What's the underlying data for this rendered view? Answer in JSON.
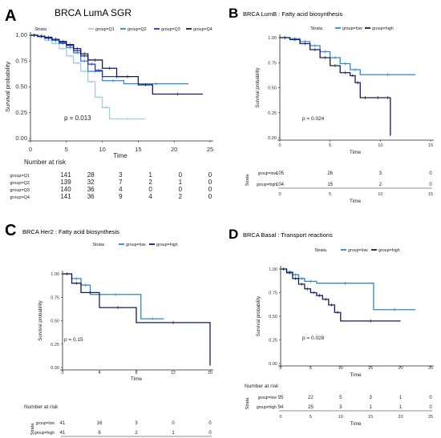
{
  "chart_data": [
    {
      "type": "line",
      "panel_letter": "A",
      "title": "BRCA LumA SGR",
      "legend_title": "Strata",
      "legend_placement": "top",
      "xlabel": "Time",
      "ylabel": "Survival probability",
      "xlim": [
        0,
        25
      ],
      "ylim": [
        0,
        1
      ],
      "xticks": [
        0,
        5,
        10,
        15,
        20,
        25
      ],
      "yticks": [
        "0.00",
        "0.25",
        "0.50",
        "0.75",
        "1.00"
      ],
      "pvalue": "p = 0.013",
      "series": [
        {
          "name": "group=Q1",
          "color": "#9ecfe3",
          "x": [
            0,
            1,
            2,
            3,
            4,
            5,
            6,
            7,
            8,
            9,
            10,
            11,
            16
          ],
          "y": [
            1.0,
            0.98,
            0.95,
            0.92,
            0.87,
            0.8,
            0.73,
            0.65,
            0.55,
            0.4,
            0.3,
            0.19,
            0.19
          ]
        },
        {
          "name": "group=Q2",
          "color": "#2f86d4",
          "x": [
            0,
            1,
            2,
            3,
            4,
            5,
            6,
            7,
            8,
            10,
            13,
            22
          ],
          "y": [
            1.0,
            0.99,
            0.97,
            0.95,
            0.92,
            0.88,
            0.83,
            0.75,
            0.65,
            0.56,
            0.53,
            0.53
          ]
        },
        {
          "name": "group=Q3",
          "color": "#2b2fc7",
          "x": [
            0,
            1,
            2,
            3,
            4,
            5,
            6,
            7,
            8,
            9,
            10,
            14
          ],
          "y": [
            1.0,
            0.99,
            0.97,
            0.96,
            0.93,
            0.9,
            0.85,
            0.8,
            0.72,
            0.66,
            0.6,
            0.6
          ]
        },
        {
          "name": "group=Q4",
          "color": "#141c5e",
          "x": [
            0,
            1,
            2,
            3,
            4,
            5,
            6,
            7,
            8,
            10,
            12,
            15,
            17,
            24
          ],
          "y": [
            1.0,
            0.99,
            0.98,
            0.96,
            0.94,
            0.91,
            0.87,
            0.82,
            0.76,
            0.68,
            0.6,
            0.52,
            0.43,
            0.43
          ]
        }
      ],
      "risk_table": {
        "title": "Number at risk",
        "strata_label": "",
        "times": [
          0,
          5,
          10,
          15,
          20,
          25
        ],
        "rows": [
          {
            "label": "group=Q1",
            "color": "#9ecfe3",
            "values": [
              "141",
              "28",
              "3",
              "1",
              "0",
              "0"
            ]
          },
          {
            "label": "group=Q2",
            "color": "#2f86d4",
            "values": [
              "139",
              "32",
              "7",
              "2",
              "1",
              "0"
            ]
          },
          {
            "label": "group=Q3",
            "color": "#2b2fc7",
            "values": [
              "140",
              "36",
              "4",
              "0",
              "0",
              "0"
            ]
          },
          {
            "label": "group=Q4",
            "color": "#141c5e",
            "values": [
              "141",
              "36",
              "9",
              "4",
              "2",
              "0"
            ]
          }
        ],
        "xlabel": ""
      }
    },
    {
      "type": "line",
      "panel_letter": "B",
      "title": "BRCA LumB : Fatty acid biosynthesis",
      "legend_title": "Strata",
      "legend_placement": "top",
      "xlabel": "Time",
      "ylabel": "Survival probability",
      "xlim": [
        0,
        15
      ],
      "ylim": [
        0,
        1
      ],
      "xticks": [
        0,
        5,
        10,
        15
      ],
      "yticks": [
        "0.00",
        "0.25",
        "0.50",
        "0.75",
        "1.00"
      ],
      "pvalue": "p = 0.024",
      "series": [
        {
          "name": "group=low",
          "color": "#2f86d4",
          "x": [
            0,
            1,
            2,
            3,
            4,
            5,
            6,
            7,
            8,
            13.5
          ],
          "y": [
            1.0,
            0.99,
            0.96,
            0.92,
            0.86,
            0.8,
            0.74,
            0.68,
            0.63,
            0.63
          ]
        },
        {
          "name": "group=high",
          "color": "#141c5e",
          "x": [
            0,
            1,
            2,
            3,
            4,
            5,
            6,
            7,
            7.5,
            8,
            9,
            10.5,
            11
          ],
          "y": [
            1.0,
            0.98,
            0.94,
            0.88,
            0.8,
            0.72,
            0.65,
            0.62,
            0.55,
            0.4,
            0.4,
            0.4,
            0.02
          ]
        }
      ],
      "risk_table": {
        "title": "",
        "strata_label": "Strata",
        "times": [
          0,
          5,
          10,
          15
        ],
        "rows": [
          {
            "label": "group=low",
            "color": "#2f86d4",
            "values": [
              "105",
              "26",
              "3",
              "0"
            ]
          },
          {
            "label": "group=high",
            "color": "#141c5e",
            "values": [
              "104",
              "15",
              "2",
              "0"
            ]
          }
        ],
        "xlabel": "Time"
      }
    },
    {
      "type": "line",
      "panel_letter": "C",
      "title": "BRCA Her2 : Fatty acid biosynthesis",
      "legend_title": "Strata",
      "legend_placement": "top",
      "xlabel": "Time",
      "ylabel": "Survival probability",
      "xlim": [
        0,
        16
      ],
      "ylim": [
        0,
        1
      ],
      "xticks": [
        0,
        4,
        8,
        12,
        16
      ],
      "yticks": [
        "0.00",
        "0.25",
        "0.50",
        "0.75",
        "1.00"
      ],
      "pvalue": "p = 0.15",
      "series": [
        {
          "name": "group=low",
          "color": "#2f86d4",
          "x": [
            0,
            1,
            2,
            3,
            8.5,
            11
          ],
          "y": [
            1.0,
            0.95,
            0.88,
            0.78,
            0.52,
            0.52
          ]
        },
        {
          "name": "group=high",
          "color": "#141c5e",
          "x": [
            0,
            1,
            2,
            4,
            8,
            16
          ],
          "y": [
            1.0,
            0.9,
            0.8,
            0.64,
            0.48,
            0.02
          ]
        }
      ],
      "risk_table": {
        "title": "Number at risk",
        "strata_label": "Strata",
        "times": [
          0,
          4,
          8,
          12,
          16
        ],
        "rows": [
          {
            "label": "group=low",
            "color": "#2f86d4",
            "values": [
              "41",
              "16",
              "3",
              "0",
              "0"
            ]
          },
          {
            "label": "group=high",
            "color": "#141c5e",
            "values": [
              "41",
              "6",
              "2",
              "1",
              "0"
            ]
          }
        ],
        "xlabel": "Time"
      }
    },
    {
      "type": "line",
      "panel_letter": "D",
      "title": "BRCA Basal : Transport reactions",
      "legend_title": "Strata",
      "legend_placement": "top",
      "xlabel": "Time",
      "ylabel": "Survival probability",
      "xlim": [
        0,
        25
      ],
      "ylim": [
        0,
        1
      ],
      "xticks": [
        0,
        5,
        10,
        15,
        20,
        25
      ],
      "yticks": [
        "0.00",
        "0.25",
        "0.50",
        "0.75",
        "1.00"
      ],
      "pvalue": "p = 0.028",
      "series": [
        {
          "name": "group=low",
          "color": "#2f86d4",
          "x": [
            0,
            1,
            2,
            3,
            4,
            6,
            15.5,
            22.5
          ],
          "y": [
            1.0,
            0.97,
            0.94,
            0.9,
            0.87,
            0.85,
            0.57,
            0.57
          ]
        },
        {
          "name": "group=high",
          "color": "#141c5e",
          "x": [
            0,
            1,
            2,
            3,
            4,
            5,
            6,
            7,
            8,
            9,
            10,
            20
          ],
          "y": [
            1.0,
            0.96,
            0.9,
            0.84,
            0.79,
            0.75,
            0.72,
            0.68,
            0.62,
            0.54,
            0.45,
            0.45
          ]
        }
      ],
      "risk_table": {
        "title": "Number at risk",
        "strata_label": "Strata",
        "times": [
          0,
          5,
          10,
          15,
          20,
          25
        ],
        "rows": [
          {
            "label": "group=low",
            "color": "#2f86d4",
            "values": [
              "95",
              "22",
              "5",
              "3",
              "1",
              "0"
            ]
          },
          {
            "label": "group=high",
            "color": "#141c5e",
            "values": [
              "94",
              "25",
              "3",
              "1",
              "1",
              "0"
            ]
          }
        ],
        "xlabel": "Time"
      }
    }
  ]
}
